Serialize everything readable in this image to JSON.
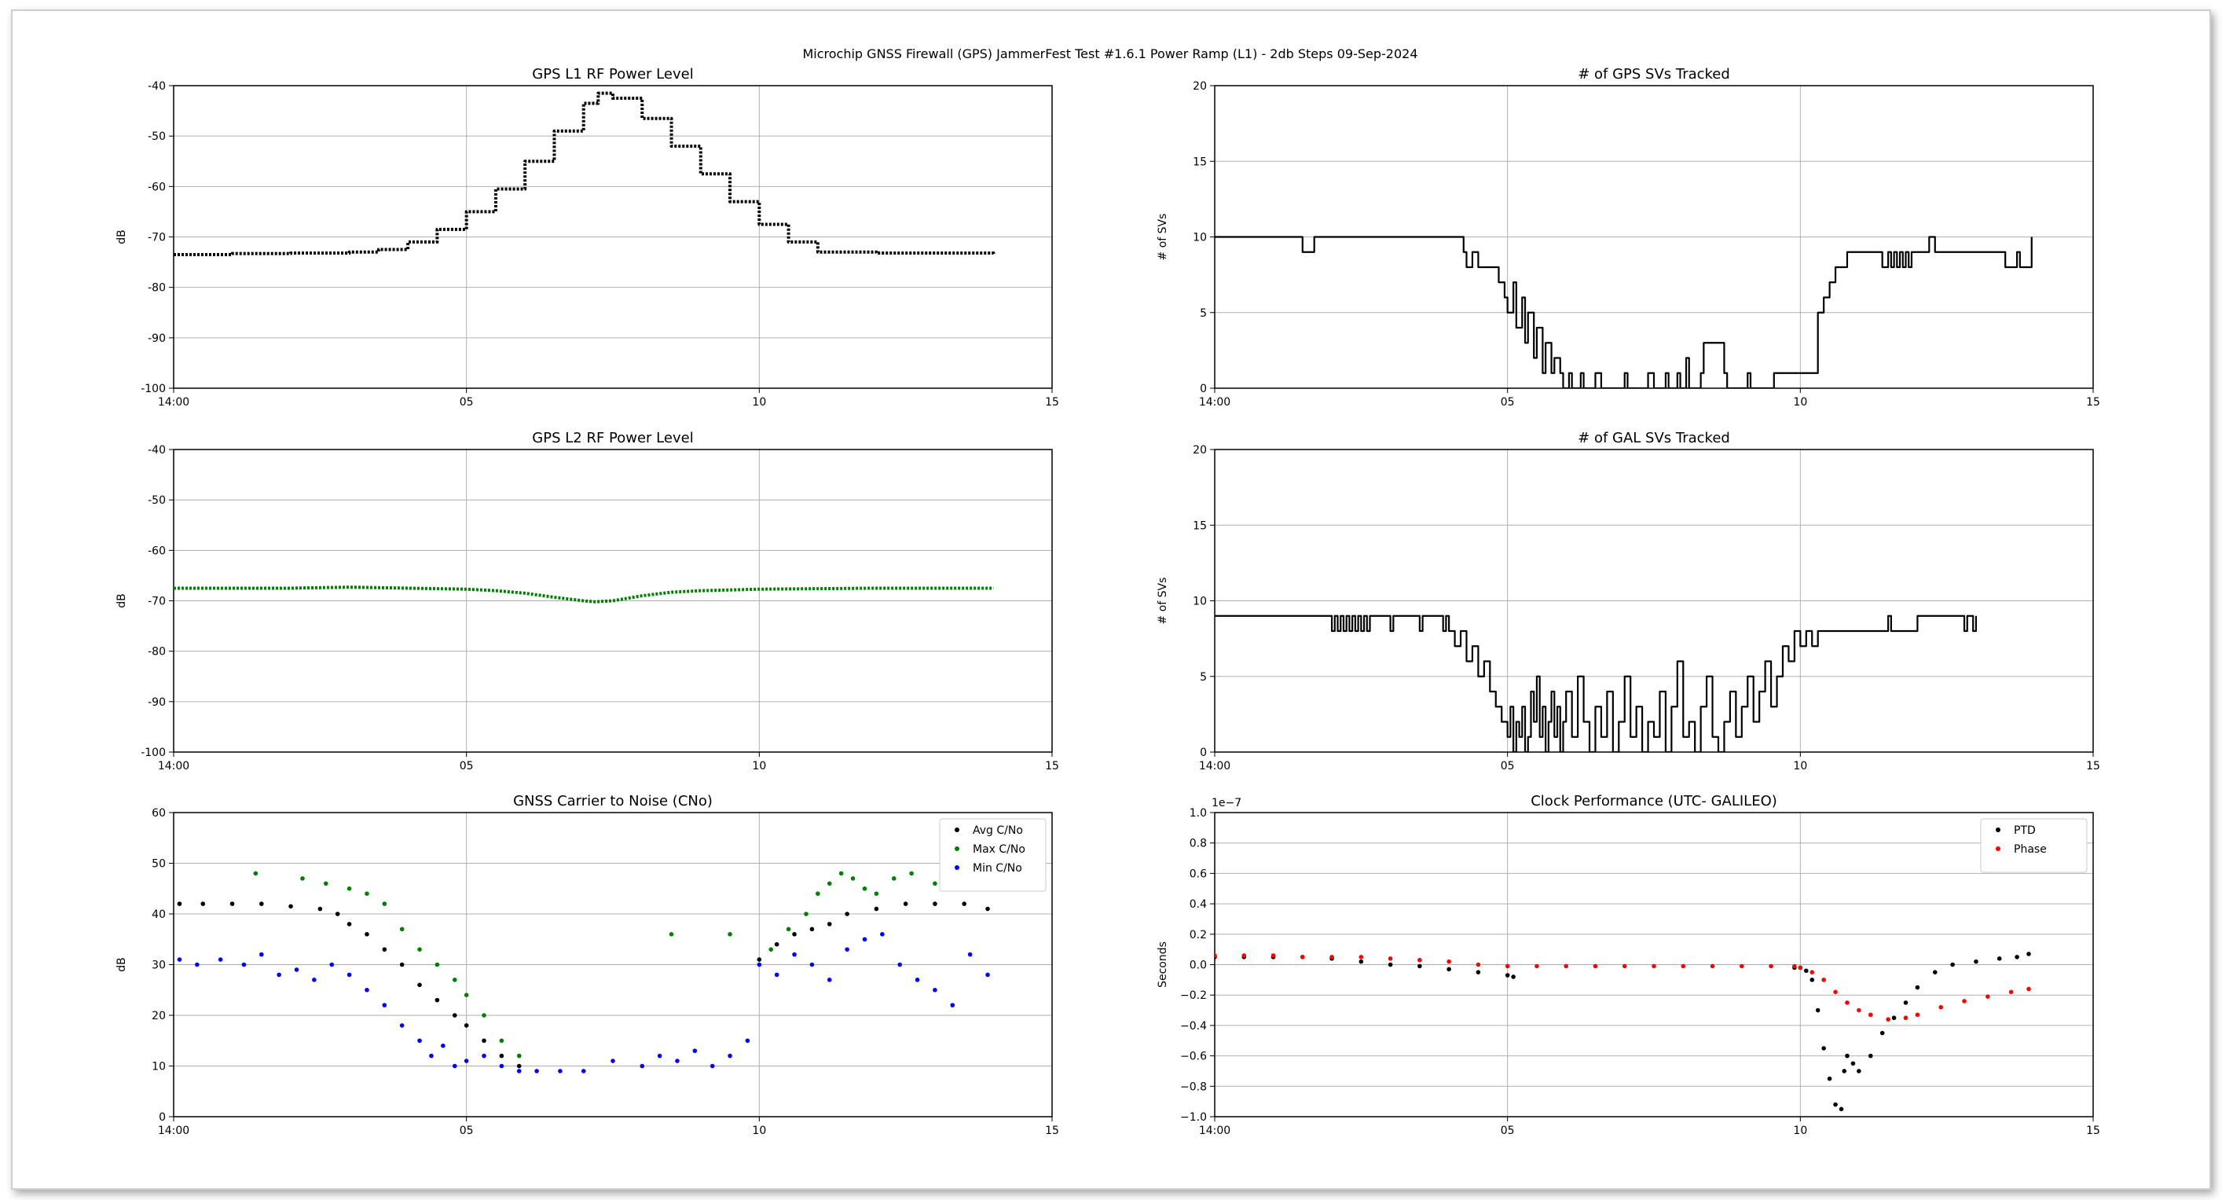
{
  "figure_title": "Microchip GNSS Firewall (GPS) JammerFest Test #1.6.1 Power Ramp (L1) - 2db Steps 09-Sep-2024",
  "colors": {
    "black": "#000000",
    "green": "#008000",
    "blue": "#0000ff",
    "red": "#ff0000",
    "grid": "#b0b0b0"
  },
  "chart_data": [
    {
      "id": "gps-l1-power",
      "type": "line",
      "title": "GPS L1 RF Power Level",
      "xlabel": "",
      "ylabel": "dB",
      "xlim": [
        0,
        15
      ],
      "ylim": [
        -100,
        -40
      ],
      "xticks": [
        0,
        5,
        10,
        15
      ],
      "xtick_labels": [
        "14:00",
        "05",
        "10",
        "15"
      ],
      "yticks": [
        -100,
        -90,
        -80,
        -70,
        -60,
        -50,
        -40
      ],
      "ytick_labels": [
        "-100",
        "-90",
        "-80",
        "-70",
        "-60",
        "-50",
        "-40"
      ],
      "grid": true,
      "legend": null,
      "series": [
        {
          "color": "#000000",
          "style": "dotted-step",
          "x": [
            0,
            1,
            2,
            3,
            3.5,
            4,
            4.5,
            5,
            5.5,
            6,
            6.5,
            7,
            7.25,
            7.5,
            8,
            8.5,
            9,
            9.5,
            10,
            10.5,
            11,
            12,
            13,
            14
          ],
          "y": [
            -73.5,
            -73.3,
            -73.2,
            -73,
            -72.5,
            -71,
            -68.5,
            -65,
            -60.5,
            -55,
            -49,
            -43.5,
            -41.5,
            -42.5,
            -46.5,
            -52,
            -57.5,
            -63,
            -67.5,
            -71,
            -73,
            -73.2,
            -73.2,
            -73.5
          ]
        }
      ]
    },
    {
      "id": "gps-svs",
      "type": "line",
      "title": "# of GPS SVs Tracked",
      "xlabel": "",
      "ylabel": "# of SVs",
      "xlim": [
        0,
        15
      ],
      "ylim": [
        0,
        20
      ],
      "xticks": [
        0,
        5,
        10,
        15
      ],
      "xtick_labels": [
        "14:00",
        "05",
        "10",
        "15"
      ],
      "yticks": [
        0,
        5,
        10,
        15,
        20
      ],
      "ytick_labels": [
        "0",
        "5",
        "10",
        "15",
        "20"
      ],
      "grid": true,
      "legend": null,
      "series": [
        {
          "color": "#000000",
          "style": "step",
          "x": [
            0,
            1.5,
            1.55,
            1.7,
            4.2,
            4.25,
            4.3,
            4.4,
            4.5,
            4.7,
            4.85,
            4.95,
            5.0,
            5.1,
            5.15,
            5.25,
            5.3,
            5.35,
            5.45,
            5.5,
            5.6,
            5.65,
            5.75,
            5.8,
            5.9,
            5.95,
            6.05,
            6.1,
            6.15,
            6.25,
            6.3,
            6.5,
            6.6,
            7.0,
            7.05,
            7.4,
            7.5,
            7.7,
            7.75,
            7.9,
            7.95,
            8.05,
            8.1,
            8.3,
            8.35,
            8.7,
            8.75,
            9.1,
            9.15,
            9.5,
            9.55,
            10.25,
            10.3,
            10.4,
            10.5,
            10.6,
            10.7,
            10.8,
            10.9,
            11.0,
            11.1,
            11.4,
            11.5,
            11.55,
            11.6,
            11.65,
            11.7,
            11.75,
            11.8,
            11.85,
            11.9,
            12.0,
            12.2,
            12.3,
            12.4,
            12.5,
            13.3,
            13.5,
            13.6,
            13.7,
            13.75,
            13.8,
            13.9,
            13.95
          ],
          "y": [
            10,
            9,
            9,
            10,
            10,
            9,
            8,
            9,
            8,
            8,
            7,
            6,
            5,
            7,
            4,
            6,
            3,
            5,
            2,
            4,
            1,
            3,
            1,
            2,
            1,
            0,
            1,
            0,
            0,
            1,
            0,
            1,
            0,
            1,
            0,
            1,
            0,
            1,
            0,
            1,
            0,
            2,
            0,
            1,
            3,
            1,
            0,
            1,
            0,
            0,
            1,
            1,
            5,
            6,
            7,
            8,
            8,
            9,
            9,
            9,
            9,
            8,
            9,
            8,
            9,
            8,
            9,
            8,
            9,
            8,
            9,
            9,
            10,
            9,
            9,
            9,
            9,
            8,
            8,
            9,
            8,
            8,
            8,
            10
          ]
        }
      ]
    },
    {
      "id": "gps-l2-power",
      "type": "line",
      "title": "GPS L2 RF Power Level",
      "xlabel": "",
      "ylabel": "dB",
      "xlim": [
        0,
        15
      ],
      "ylim": [
        -100,
        -40
      ],
      "xticks": [
        0,
        5,
        10,
        15
      ],
      "xtick_labels": [
        "14:00",
        "05",
        "10",
        "15"
      ],
      "yticks": [
        -100,
        -90,
        -80,
        -70,
        -60,
        -50,
        -40
      ],
      "ytick_labels": [
        "-100",
        "-90",
        "-80",
        "-70",
        "-60",
        "-50",
        "-40"
      ],
      "grid": true,
      "legend": null,
      "series": [
        {
          "color": "#008000",
          "style": "dotted",
          "x": [
            0,
            1,
            2,
            3,
            4,
            5,
            5.5,
            6,
            6.5,
            7,
            7.2,
            7.5,
            8,
            8.5,
            9,
            10,
            11,
            12,
            13,
            14
          ],
          "y": [
            -67.5,
            -67.5,
            -67.5,
            -67.3,
            -67.5,
            -67.7,
            -68,
            -68.5,
            -69.3,
            -70,
            -70.2,
            -70,
            -69,
            -68.3,
            -68,
            -67.7,
            -67.6,
            -67.5,
            -67.5,
            -67.5
          ]
        }
      ]
    },
    {
      "id": "gal-svs",
      "type": "line",
      "title": "# of GAL SVs Tracked",
      "xlabel": "",
      "ylabel": "# of SVs",
      "xlim": [
        0,
        15
      ],
      "ylim": [
        0,
        20
      ],
      "xticks": [
        0,
        5,
        10,
        15
      ],
      "xtick_labels": [
        "14:00",
        "05",
        "10",
        "15"
      ],
      "yticks": [
        0,
        5,
        10,
        15,
        20
      ],
      "ytick_labels": [
        "0",
        "5",
        "10",
        "15",
        "20"
      ],
      "grid": true,
      "legend": null,
      "series": [
        {
          "color": "#000000",
          "style": "step",
          "x": [
            0,
            2.0,
            2.05,
            2.1,
            2.15,
            2.2,
            2.25,
            2.3,
            2.35,
            2.4,
            2.45,
            2.5,
            2.55,
            2.6,
            2.65,
            2.7,
            3.0,
            3.05,
            3.5,
            3.55,
            3.9,
            3.95,
            4.0,
            4.1,
            4.2,
            4.3,
            4.4,
            4.5,
            4.6,
            4.7,
            4.8,
            4.9,
            5.0,
            5.05,
            5.1,
            5.15,
            5.2,
            5.25,
            5.3,
            5.35,
            5.4,
            5.45,
            5.5,
            5.55,
            5.6,
            5.65,
            5.7,
            5.75,
            5.8,
            5.85,
            5.9,
            5.95,
            6.0,
            6.1,
            6.2,
            6.3,
            6.4,
            6.5,
            6.6,
            6.7,
            6.8,
            6.9,
            7.0,
            7.1,
            7.2,
            7.3,
            7.4,
            7.5,
            7.6,
            7.7,
            7.8,
            7.9,
            8.0,
            8.1,
            8.2,
            8.3,
            8.4,
            8.5,
            8.6,
            8.7,
            8.8,
            8.9,
            9.0,
            9.1,
            9.2,
            9.3,
            9.4,
            9.5,
            9.6,
            9.7,
            9.8,
            9.9,
            10.0,
            10.1,
            10.2,
            10.3,
            10.4,
            10.5,
            11.5,
            11.55,
            12.0,
            12.5,
            12.55,
            12.8,
            12.85,
            12.95,
            13.0
          ],
          "y": [
            9,
            8,
            9,
            8,
            9,
            8,
            9,
            8,
            9,
            8,
            9,
            8,
            9,
            8,
            9,
            9,
            8,
            9,
            8,
            9,
            8,
            9,
            8,
            7,
            8,
            6,
            7,
            5,
            6,
            4,
            3,
            2,
            1,
            3,
            0,
            2,
            1,
            3,
            0,
            1,
            4,
            2,
            5,
            1,
            3,
            0,
            2,
            4,
            1,
            3,
            0,
            2,
            4,
            1,
            5,
            2,
            0,
            3,
            1,
            4,
            0,
            2,
            5,
            1,
            3,
            0,
            2,
            1,
            4,
            0,
            3,
            6,
            1,
            2,
            0,
            3,
            5,
            1,
            0,
            2,
            4,
            1,
            3,
            5,
            2,
            4,
            6,
            3,
            5,
            7,
            6,
            8,
            7,
            8,
            7,
            8,
            8,
            8,
            9,
            8,
            9,
            9,
            9,
            8,
            9,
            8,
            9
          ]
        }
      ]
    },
    {
      "id": "gnss-cno",
      "type": "scatter",
      "title": "GNSS Carrier to Noise (CNo)",
      "xlabel": "",
      "ylabel": "dB",
      "xlim": [
        0,
        15
      ],
      "ylim": [
        0,
        60
      ],
      "xticks": [
        0,
        5,
        10,
        15
      ],
      "xtick_labels": [
        "14:00",
        "05",
        "10",
        "15"
      ],
      "yticks": [
        0,
        10,
        20,
        30,
        40,
        50,
        60
      ],
      "ytick_labels": [
        "0",
        "10",
        "20",
        "30",
        "40",
        "50",
        "60"
      ],
      "grid": true,
      "legend": "top-right",
      "series": [
        {
          "name": "Avg C/No",
          "color": "#000000",
          "x": [
            0.1,
            0.5,
            1.0,
            1.5,
            2.0,
            2.5,
            2.8,
            3.0,
            3.3,
            3.6,
            3.9,
            4.2,
            4.5,
            4.8,
            5.0,
            5.3,
            5.6,
            5.9,
            10.0,
            10.3,
            10.6,
            10.9,
            11.2,
            11.5,
            12.0,
            12.5,
            13.0,
            13.5,
            13.9
          ],
          "y": [
            42,
            42,
            42,
            42,
            41.5,
            41,
            40,
            38,
            36,
            33,
            30,
            26,
            23,
            20,
            18,
            15,
            12,
            10,
            31,
            34,
            36,
            37,
            38,
            40,
            41,
            42,
            42,
            42,
            41
          ]
        },
        {
          "name": "Max C/No",
          "color": "#008000",
          "x": [
            1.4,
            2.2,
            2.6,
            3.0,
            3.3,
            3.6,
            3.9,
            4.2,
            4.5,
            4.8,
            5.0,
            5.3,
            5.6,
            5.9,
            8.5,
            9.5,
            10.2,
            10.5,
            10.8,
            11.0,
            11.2,
            11.4,
            11.6,
            11.8,
            12.0,
            12.3,
            12.6,
            13.0
          ],
          "y": [
            48,
            47,
            46,
            45,
            44,
            42,
            37,
            33,
            30,
            27,
            24,
            20,
            15,
            12,
            36,
            36,
            33,
            37,
            40,
            44,
            46,
            48,
            47,
            45,
            44,
            47,
            48,
            46
          ]
        },
        {
          "name": "Min C/No",
          "color": "#0000ff",
          "x": [
            0.1,
            0.4,
            0.8,
            1.2,
            1.5,
            1.8,
            2.1,
            2.4,
            2.7,
            3.0,
            3.3,
            3.6,
            3.9,
            4.2,
            4.4,
            4.6,
            4.8,
            5.0,
            5.3,
            5.6,
            5.9,
            6.2,
            6.6,
            7.0,
            7.5,
            8.0,
            8.3,
            8.6,
            8.9,
            9.2,
            9.5,
            9.8,
            10.0,
            10.3,
            10.6,
            10.9,
            11.2,
            11.5,
            11.8,
            12.1,
            12.4,
            12.7,
            13.0,
            13.3,
            13.6,
            13.9
          ],
          "y": [
            31,
            30,
            31,
            30,
            32,
            28,
            29,
            27,
            30,
            28,
            25,
            22,
            18,
            15,
            12,
            14,
            10,
            11,
            12,
            10,
            9,
            9,
            9,
            9,
            11,
            10,
            12,
            11,
            13,
            10,
            12,
            15,
            30,
            28,
            32,
            30,
            27,
            33,
            35,
            36,
            30,
            27,
            25,
            22,
            32,
            28
          ]
        }
      ]
    },
    {
      "id": "clock-performance",
      "type": "scatter",
      "title": "Clock Performance (UTC- GALILEO)",
      "xlabel": "",
      "ylabel": "Seconds",
      "offset_label": "1e−7",
      "xlim": [
        0,
        15
      ],
      "ylim": [
        -1.0,
        1.0
      ],
      "xticks": [
        0,
        5,
        10,
        15
      ],
      "xtick_labels": [
        "14:00",
        "05",
        "10",
        "15"
      ],
      "yticks": [
        -1.0,
        -0.8,
        -0.6,
        -0.4,
        -0.2,
        0.0,
        0.2,
        0.4,
        0.6,
        0.8,
        1.0
      ],
      "ytick_labels": [
        "−1.0",
        "−0.8",
        "−0.6",
        "−0.4",
        "−0.2",
        "0.0",
        "0.2",
        "0.4",
        "0.6",
        "0.8",
        "1.0"
      ],
      "grid": true,
      "legend": "top-right",
      "series": [
        {
          "name": "PTD",
          "color": "#000000",
          "x": [
            0.0,
            0.5,
            1.0,
            1.5,
            2.0,
            2.5,
            3.0,
            3.5,
            4.0,
            4.5,
            5.0,
            5.1,
            9.9,
            10.0,
            10.1,
            10.2,
            10.3,
            10.4,
            10.5,
            10.6,
            10.7,
            10.75,
            10.8,
            10.9,
            11.0,
            11.2,
            11.4,
            11.6,
            11.8,
            12.0,
            12.3,
            12.6,
            13.0,
            13.4,
            13.7,
            13.9
          ],
          "y": [
            0.05,
            0.05,
            0.05,
            0.05,
            0.04,
            0.02,
            0.0,
            -0.01,
            -0.03,
            -0.05,
            -0.07,
            -0.08,
            -0.02,
            -0.02,
            -0.04,
            -0.1,
            -0.3,
            -0.55,
            -0.75,
            -0.92,
            -0.95,
            -0.7,
            -0.6,
            -0.65,
            -0.7,
            -0.6,
            -0.45,
            -0.35,
            -0.25,
            -0.15,
            -0.05,
            0.0,
            0.02,
            0.04,
            0.05,
            0.07
          ]
        },
        {
          "name": "Phase",
          "color": "#ff0000",
          "x": [
            0.0,
            0.5,
            1.0,
            1.5,
            2.0,
            2.5,
            3.0,
            3.5,
            4.0,
            4.5,
            5.0,
            5.5,
            6.0,
            6.5,
            7.0,
            7.5,
            8.0,
            8.5,
            9.0,
            9.5,
            9.9,
            10.0,
            10.2,
            10.4,
            10.6,
            10.8,
            11.0,
            11.2,
            11.5,
            11.8,
            12.0,
            12.4,
            12.8,
            13.2,
            13.6,
            13.9
          ],
          "y": [
            0.06,
            0.06,
            0.06,
            0.05,
            0.05,
            0.05,
            0.04,
            0.03,
            0.02,
            0.0,
            -0.01,
            -0.01,
            -0.01,
            -0.01,
            -0.01,
            -0.01,
            -0.01,
            -0.01,
            -0.01,
            -0.01,
            -0.01,
            -0.02,
            -0.05,
            -0.1,
            -0.18,
            -0.25,
            -0.3,
            -0.33,
            -0.36,
            -0.35,
            -0.33,
            -0.28,
            -0.24,
            -0.21,
            -0.18,
            -0.16
          ]
        }
      ]
    }
  ]
}
